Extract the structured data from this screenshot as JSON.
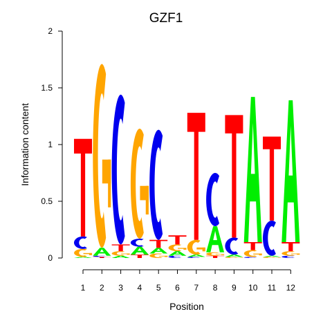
{
  "chart_data": {
    "type": "sequence-logo",
    "title": "GZF1",
    "xlabel": "Position",
    "ylabel": "Information content",
    "ylim": [
      0,
      2
    ],
    "yticks": [
      "0",
      "0.5",
      "1",
      "1.5",
      "2"
    ],
    "xticks": [
      "1",
      "2",
      "3",
      "4",
      "5",
      "6",
      "7",
      "8",
      "9",
      "10",
      "11",
      "12"
    ],
    "colors": {
      "A": "#00ee00",
      "C": "#0000ee",
      "G": "#ffa500",
      "T": "#ff0000"
    },
    "positions": [
      {
        "position": 1,
        "letters": [
          {
            "base": "A",
            "height": 0.01
          },
          {
            "base": "G",
            "height": 0.07
          },
          {
            "base": "C",
            "height": 0.11
          },
          {
            "base": "T",
            "height": 0.86
          }
        ]
      },
      {
        "position": 2,
        "letters": [
          {
            "base": "T",
            "height": 0.01
          },
          {
            "base": "C",
            "height": 0.01
          },
          {
            "base": "A",
            "height": 0.07
          },
          {
            "base": "G",
            "height": 1.62
          }
        ]
      },
      {
        "position": 3,
        "letters": [
          {
            "base": "A",
            "height": 0.02
          },
          {
            "base": "G",
            "height": 0.04
          },
          {
            "base": "T",
            "height": 0.06
          },
          {
            "base": "C",
            "height": 1.32
          }
        ]
      },
      {
        "position": 4,
        "letters": [
          {
            "base": "T",
            "height": 0.03
          },
          {
            "base": "A",
            "height": 0.07
          },
          {
            "base": "C",
            "height": 0.07
          },
          {
            "base": "G",
            "height": 0.97
          }
        ]
      },
      {
        "position": 5,
        "letters": [
          {
            "base": "G",
            "height": 0.04
          },
          {
            "base": "A",
            "height": 0.05
          },
          {
            "base": "T",
            "height": 0.07
          },
          {
            "base": "C",
            "height": 0.97
          }
        ]
      },
      {
        "position": 6,
        "letters": [
          {
            "base": "C",
            "height": 0.02
          },
          {
            "base": "A",
            "height": 0.04
          },
          {
            "base": "G",
            "height": 0.06
          },
          {
            "base": "T",
            "height": 0.08
          }
        ]
      },
      {
        "position": 7,
        "letters": [
          {
            "base": "C",
            "height": 0.01
          },
          {
            "base": "A",
            "height": 0.02
          },
          {
            "base": "G",
            "height": 0.13
          },
          {
            "base": "T",
            "height": 1.12
          }
        ]
      },
      {
        "position": 8,
        "letters": [
          {
            "base": "T",
            "height": 0.02
          },
          {
            "base": "G",
            "height": 0.03
          },
          {
            "base": "A",
            "height": 0.23
          },
          {
            "base": "C",
            "height": 0.47
          }
        ]
      },
      {
        "position": 9,
        "letters": [
          {
            "base": "G",
            "height": 0.01
          },
          {
            "base": "A",
            "height": 0.02
          },
          {
            "base": "C",
            "height": 0.15
          },
          {
            "base": "T",
            "height": 1.08
          }
        ]
      },
      {
        "position": 10,
        "letters": [
          {
            "base": "C",
            "height": 0.01
          },
          {
            "base": "G",
            "height": 0.06
          },
          {
            "base": "T",
            "height": 0.07
          },
          {
            "base": "A",
            "height": 1.28
          }
        ]
      },
      {
        "position": 11,
        "letters": [
          {
            "base": "G",
            "height": 0.01
          },
          {
            "base": "A",
            "height": 0.01
          },
          {
            "base": "C",
            "height": 0.31
          },
          {
            "base": "T",
            "height": 0.74
          }
        ]
      },
      {
        "position": 12,
        "letters": [
          {
            "base": "C",
            "height": 0.02
          },
          {
            "base": "G",
            "height": 0.04
          },
          {
            "base": "T",
            "height": 0.08
          },
          {
            "base": "A",
            "height": 1.25
          }
        ]
      }
    ]
  }
}
